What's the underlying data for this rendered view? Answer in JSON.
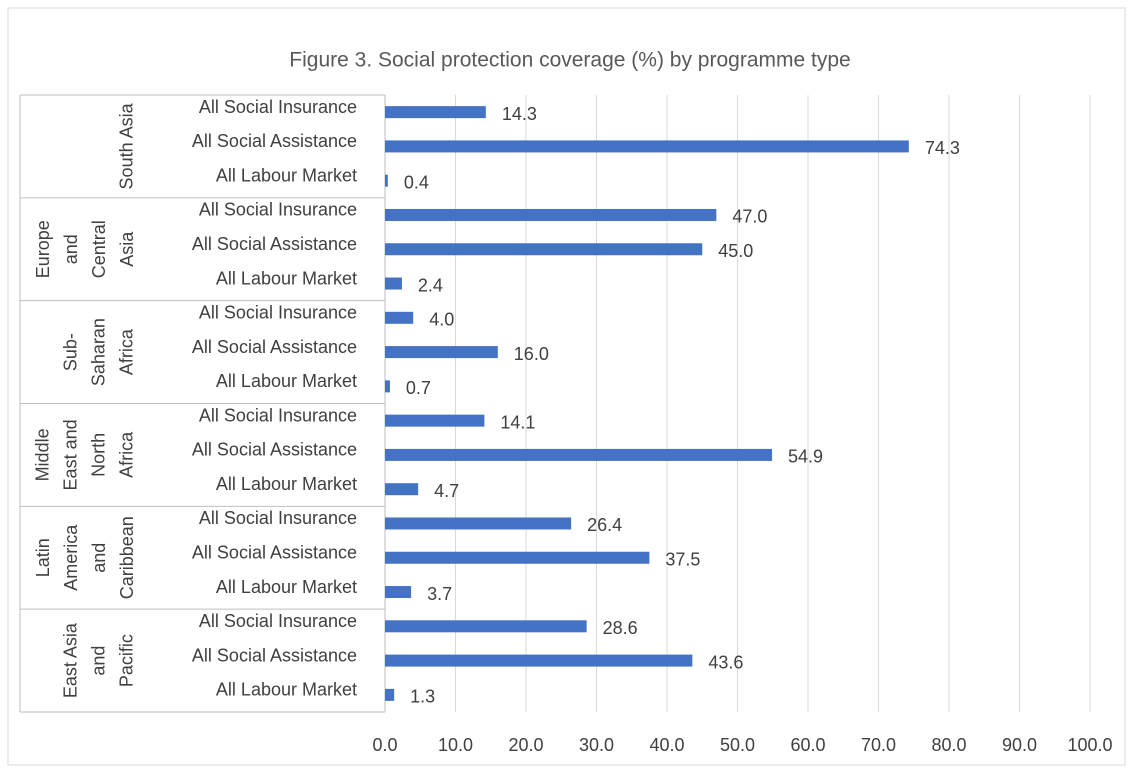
{
  "chart_data": {
    "type": "bar",
    "orientation": "horizontal",
    "title": "Figure 3. Social protection coverage (%) by programme type",
    "groups": [
      [
        "South Asia"
      ],
      [
        "Europe",
        "and",
        "Central",
        "Asia"
      ],
      [
        "Sub-",
        "Saharan",
        "Africa"
      ],
      [
        "Middle",
        "East and",
        "North",
        "Africa"
      ],
      [
        "Latin",
        "America",
        "and",
        "Caribbean"
      ],
      [
        "East Asia",
        "and",
        "Pacific"
      ]
    ],
    "categories": [
      "All Social Insurance",
      "All Social Assistance",
      "All Labour Market",
      "All Social Insurance",
      "All Social Assistance",
      "All Labour Market",
      "All Social Insurance",
      "All Social Assistance",
      "All Labour Market",
      "All Social Insurance",
      "All Social Assistance",
      "All Labour Market",
      "All Social Insurance",
      "All Social Assistance",
      "All Labour Market",
      "All Social Insurance",
      "All Social Assistance",
      "All Labour Market"
    ],
    "values": [
      14.3,
      74.3,
      0.4,
      47,
      45,
      2.4,
      4,
      16,
      0.7,
      14.1,
      54.9,
      4.7,
      26.4,
      37.5,
      3.7,
      28.6,
      43.6,
      1.3
    ],
    "value_labels": [
      "14.3",
      "74.3",
      "0.4",
      "47.0",
      "45.0",
      "2.4",
      "4.0",
      "16.0",
      "0.7",
      "14.1",
      "54.9",
      "4.7",
      "26.4",
      "37.5",
      "3.7",
      "28.6",
      "43.6",
      "1.3"
    ],
    "color": "#4472c4",
    "xlim": [
      0,
      100
    ],
    "xticks": [
      {
        "value": 0,
        "label": "0.0"
      },
      {
        "value": 10,
        "label": "10.0"
      },
      {
        "value": 20,
        "label": "20.0"
      },
      {
        "value": 30,
        "label": "30.0"
      },
      {
        "value": 40,
        "label": "40.0"
      },
      {
        "value": 50,
        "label": "50.0"
      },
      {
        "value": 60,
        "label": "60.0"
      },
      {
        "value": 70,
        "label": "70.0"
      },
      {
        "value": 80,
        "label": "80.0"
      },
      {
        "value": 90,
        "label": "90.0"
      },
      {
        "value": 100,
        "label": "100.0"
      }
    ],
    "grid": true
  }
}
